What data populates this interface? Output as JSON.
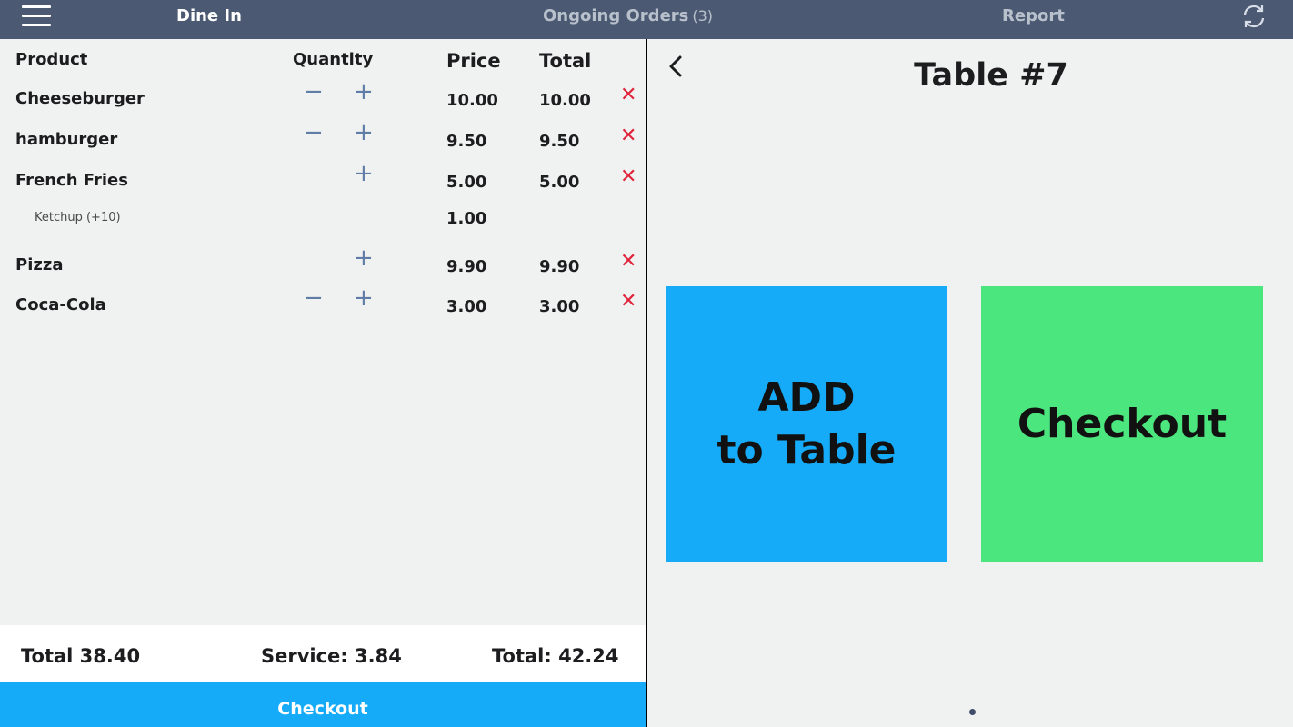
{
  "topbar": {
    "tabs": {
      "dine_in": "Dine In",
      "ongoing": "Ongoing Orders",
      "ongoing_count": "(3)",
      "report": "Report"
    }
  },
  "order": {
    "headers": {
      "product": "Product",
      "quantity": "Quantity",
      "price": "Price",
      "total": "Total"
    },
    "items": [
      {
        "name": "Cheeseburger",
        "price": "10.00",
        "total": "10.00",
        "has_minus": true
      },
      {
        "name": "hamburger",
        "price": "9.50",
        "total": "9.50",
        "has_minus": true
      },
      {
        "name": "French Fries",
        "price": "5.00",
        "total": "5.00",
        "has_minus": false,
        "modifier": {
          "name": "Ketchup (+10)",
          "price": "1.00"
        }
      },
      {
        "name": "Pizza",
        "price": "9.90",
        "total": "9.90",
        "has_minus": false
      },
      {
        "name": "Coca-Cola",
        "price": "3.00",
        "total": "3.00",
        "has_minus": true
      }
    ],
    "summary": {
      "total": "Total 38.40",
      "service": "Service: 3.84",
      "grand_total": "Total: 42.24"
    },
    "checkout_label": "Checkout"
  },
  "table_panel": {
    "title": "Table #7",
    "add_line1": "ADD",
    "add_line2": "to Table",
    "checkout_label": "Checkout"
  },
  "colors": {
    "topbar": "#4b5a72",
    "accent_blue": "#16abf8",
    "accent_green": "#4ce67e",
    "remove_red": "#e0243b"
  },
  "icons": [
    "menu-icon",
    "refresh-icon",
    "back-icon",
    "minus-icon",
    "plus-icon",
    "remove-icon"
  ]
}
